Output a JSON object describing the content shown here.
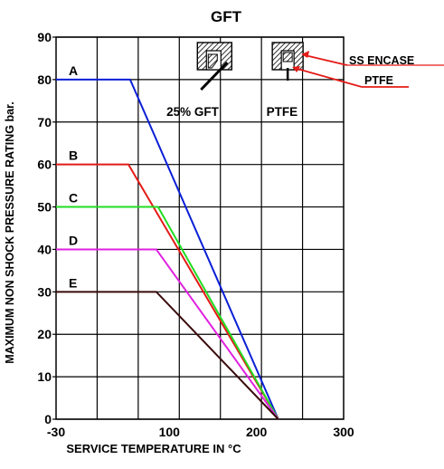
{
  "chart_data": {
    "type": "line",
    "title": "GFT",
    "xlabel": "SERVICE TEMPERATURE IN °C",
    "ylabel": "MAXIMUM NON SHOCK PRESSURE RATING bar.",
    "xlim": [
      -30,
      300
    ],
    "ylim": [
      0,
      90
    ],
    "x_ticks": [
      {
        "value": -30,
        "label": "-30"
      },
      {
        "value": 100,
        "label": "100"
      },
      {
        "value": 200,
        "label": "200"
      },
      {
        "value": 300,
        "label": "300"
      }
    ],
    "y_ticks": [
      {
        "value": 0,
        "label": "0"
      },
      {
        "value": 10,
        "label": "10"
      },
      {
        "value": 20,
        "label": "20"
      },
      {
        "value": 30,
        "label": "30"
      },
      {
        "value": 40,
        "label": "40"
      },
      {
        "value": 50,
        "label": "50"
      },
      {
        "value": 60,
        "label": "60"
      },
      {
        "value": 70,
        "label": "70"
      },
      {
        "value": 80,
        "label": "80"
      },
      {
        "value": 90,
        "label": "90"
      }
    ],
    "grid": true,
    "series": [
      {
        "name": "A",
        "color": "#0a1fd6",
        "x": [
          -30,
          55,
          225
        ],
        "y": [
          80,
          80,
          0
        ]
      },
      {
        "name": "B",
        "color": "#e41b17",
        "x": [
          -30,
          53,
          225
        ],
        "y": [
          60,
          60,
          0
        ]
      },
      {
        "name": "C",
        "color": "#22dd22",
        "x": [
          -30,
          87,
          225
        ],
        "y": [
          50,
          50,
          0
        ]
      },
      {
        "name": "D",
        "color": "#e020e0",
        "x": [
          -30,
          85,
          225
        ],
        "y": [
          40,
          40,
          0
        ]
      },
      {
        "name": "E",
        "color": "#3a0a0a",
        "x": [
          -30,
          85,
          225
        ],
        "y": [
          30,
          30,
          0
        ]
      }
    ],
    "annotations": {
      "box1_label": "25% GFT",
      "box2_label": "PTFE",
      "callout1": "SS ENCASE",
      "callout2": "PTFE"
    }
  }
}
